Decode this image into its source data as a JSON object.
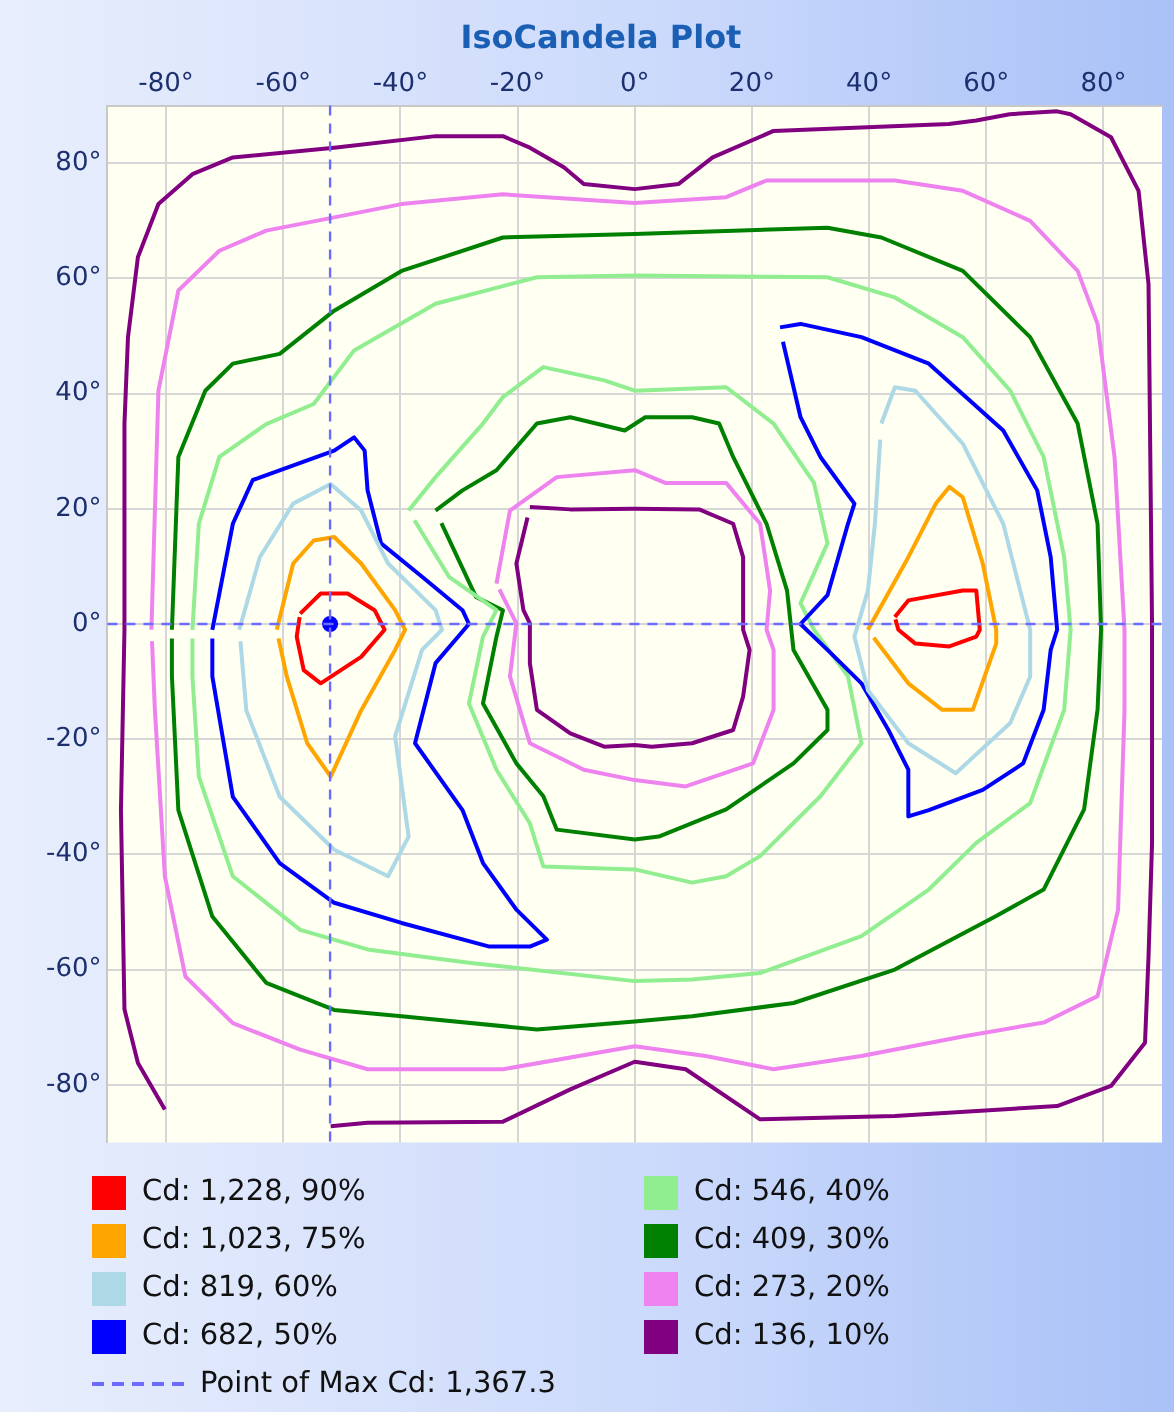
{
  "chart_data": {
    "type": "line",
    "title": "IsoCandela Plot",
    "xlim": [
      -90,
      90
    ],
    "ylim": [
      -90,
      90
    ],
    "xticks": [
      {
        "value": -80,
        "label": "-80°"
      },
      {
        "value": -60,
        "label": "-60°"
      },
      {
        "value": -40,
        "label": "-40°"
      },
      {
        "value": -20,
        "label": "-20°"
      },
      {
        "value": 0,
        "label": "0°"
      },
      {
        "value": 20,
        "label": "20°"
      },
      {
        "value": 40,
        "label": "40°"
      },
      {
        "value": 60,
        "label": "60°"
      },
      {
        "value": 80,
        "label": "80°"
      }
    ],
    "yticks": [
      {
        "value": -80,
        "label": "-80°"
      },
      {
        "value": -60,
        "label": "-60°"
      },
      {
        "value": -40,
        "label": "-40°"
      },
      {
        "value": -20,
        "label": "-20°"
      },
      {
        "value": 0,
        "label": "0°"
      },
      {
        "value": 20,
        "label": "20°"
      },
      {
        "value": 40,
        "label": "40°"
      },
      {
        "value": 60,
        "label": "60°"
      },
      {
        "value": 80,
        "label": "80°"
      }
    ],
    "grid": true,
    "legend": "bottom",
    "marker": "none",
    "line_style": "solid",
    "series": [
      {
        "name": "Cd: 1,228, 90%",
        "color": "#ff0000",
        "x": [
          -57.1,
          -53.6,
          -49,
          -44.4,
          -42.7,
          -46.7,
          -53.6,
          -56.5,
          -57.7,
          -57.2
        ],
        "values": [
          1.8,
          5.3,
          5.3,
          2.4,
          -1,
          -5.7,
          -10.3,
          -8,
          -2.2,
          1.2
        ]
      },
      {
        "color": "#ff0000",
        "x": [
          44.4,
          46.7,
          56,
          58.3,
          58.9,
          58.3,
          53.7,
          47.9,
          45,
          44.5
        ],
        "values": [
          1.2,
          4.1,
          5.8,
          5.8,
          -1,
          -2.2,
          -3.9,
          -3.4,
          -1,
          0.8
        ]
      },
      {
        "name": "Cd: 1,023, 75%",
        "color": "#ffa500",
        "x": [
          -61.1,
          -58.3,
          -54.8,
          -51.3,
          -46.7,
          -40.9,
          -39.2,
          -40.9,
          -46.7,
          -51.9,
          -55.9,
          -59.4,
          -60.8
        ],
        "values": [
          -1,
          10.5,
          14.5,
          15.1,
          10.5,
          2.4,
          -1,
          -4.5,
          -15,
          -26.5,
          -20.7,
          -9.1,
          -2.5
        ]
      },
      {
        "color": "#ffa500",
        "x": [
          39.8,
          46.7,
          51.4,
          53.7,
          56,
          59.4,
          61.7,
          61.7,
          57.7,
          52.5,
          46.7,
          40.8
        ],
        "values": [
          -1,
          11.6,
          20.9,
          23.8,
          22,
          10.5,
          -1,
          -3.4,
          -14.9,
          -14.9,
          -10.3,
          -2.4
        ]
      },
      {
        "name": "Cd: 819, 60%",
        "color": "#add8e6",
        "x": [
          -67.5,
          -64,
          -58.3,
          -51.9,
          -46.7,
          -42.1,
          -34,
          -32.9,
          -36.3,
          -40.9,
          -38.6,
          -42.1,
          -51.3,
          -60.6,
          -66.3,
          -67.3
        ],
        "values": [
          -1,
          11.6,
          20.9,
          24.3,
          19.7,
          10.5,
          2.4,
          -1,
          -4.5,
          -19.5,
          -36.9,
          -43.8,
          -39.2,
          -30,
          -15,
          -3
        ]
      },
      {
        "color": "#add8e6",
        "x": [
          42.1,
          44.4,
          47.9,
          56,
          62.9,
          67.5,
          67.5,
          64.1,
          54.8,
          46.7,
          39.8,
          37.5,
          39.8,
          41,
          41.9
        ],
        "values": [
          34.8,
          41.1,
          40.5,
          31.3,
          17.4,
          -1,
          -9.1,
          -17.2,
          -25.9,
          -20.7,
          -11.5,
          -2.2,
          5.8,
          17.4,
          32
        ]
      },
      {
        "name": "Cd: 682, 50%",
        "color": "#0000ff",
        "x": [
          -72.1,
          -68.6,
          -65.2,
          -51.3,
          -47.9,
          -46.1,
          -45.6,
          -43.3,
          -36.3,
          -29.4,
          -28.3,
          -34,
          -37.5,
          -29.4,
          -25.9,
          -20.2,
          -15,
          -17.9,
          -24.8,
          -39.8,
          -51.3,
          -60.6,
          -68.6,
          -72.1,
          -72.1
        ],
        "values": [
          -1,
          17.4,
          25,
          30.1,
          32.4,
          30.1,
          23.2,
          14,
          8.2,
          2.4,
          0,
          -6.8,
          -20.7,
          -32.3,
          -41.5,
          -49.6,
          -54.8,
          -56,
          -56,
          -51.9,
          -48.4,
          -41.5,
          -30,
          -9.1,
          -2.5
        ]
      },
      {
        "color": "#0000ff",
        "x": [
          24.8,
          28.3,
          38.7,
          50.2,
          62.9,
          68.7,
          71,
          72.1,
          71,
          69.8,
          66.3,
          59.4,
          50.2,
          46.7,
          46.7,
          43.3,
          38.7,
          32.9,
          28.3,
          32.9,
          36.4,
          37.5,
          31.7,
          28.3,
          25.3
        ],
        "values": [
          51.5,
          52.1,
          49.8,
          45.2,
          33.6,
          23.2,
          11.6,
          -1,
          -4.5,
          -14.9,
          -24.2,
          -28.8,
          -32.3,
          -33.4,
          -25.3,
          -18.4,
          -10.3,
          -4.5,
          0,
          5,
          17.4,
          20.9,
          29,
          35.9,
          49
        ]
      },
      {
        "name": "Cd: 546, 40%",
        "color": "#90ee90",
        "x": [
          -75.5,
          -74.4,
          -70.9,
          -62.9,
          -54.8,
          -47.9,
          -34,
          -16.7,
          0,
          32.9,
          44.4,
          56,
          64.1,
          69.8,
          73.3,
          74.4,
          73.3,
          67.5,
          58.3,
          50.2,
          38.7,
          21.4,
          9.8,
          0,
          -28.3,
          -45.6,
          -57.1,
          -68.6,
          -74.4,
          -75.5,
          -75.5
        ],
        "values": [
          -1,
          17.4,
          29,
          34.7,
          38.2,
          47.5,
          55.6,
          60.2,
          60.5,
          60.2,
          56.7,
          49.8,
          40.5,
          29,
          11.6,
          -1,
          -14.9,
          -31.1,
          -38,
          -46.1,
          -54.2,
          -60.6,
          -61.7,
          -62,
          -58.8,
          -56.5,
          -53.1,
          -43.8,
          -26.5,
          -9.1,
          -2.5
        ]
      },
      {
        "color": "#90ee90",
        "x": [
          -38.6,
          -34,
          -25.9,
          -22.5,
          -15.6,
          -5.2,
          0,
          15.6,
          23.7,
          30.6,
          32.9,
          28.3,
          30.6,
          36.4,
          38.7,
          31.7,
          21.4,
          15.6,
          9.8,
          0,
          -15.6,
          -17.9,
          -23.6,
          -28.3,
          -25.9,
          -23.6,
          -31.7,
          -37.6
        ],
        "values": [
          19.7,
          25.5,
          34.8,
          39.4,
          44.6,
          42.3,
          40.5,
          41.1,
          34.8,
          24.5,
          14,
          3.6,
          -1,
          -9.1,
          -20.7,
          -29.9,
          -40.3,
          -43.8,
          -44.9,
          -42.6,
          -42.1,
          -34.6,
          -25.3,
          -13.8,
          -2.2,
          2.4,
          8.2,
          18
        ]
      },
      {
        "name": "Cd: 409, 30%",
        "color": "#008000",
        "x": [
          -79,
          -77.9,
          -73.3,
          -68.6,
          -60.6,
          -51.3,
          -39.8,
          -22.5,
          0,
          32.9,
          42.1,
          56,
          67.5,
          75.6,
          79,
          79.6,
          79,
          76.7,
          69.8,
          61.7,
          44.4,
          27.1,
          9.8,
          0,
          -16.7,
          -39.8,
          -51.3,
          -62.9,
          -72.1,
          -77.9,
          -79,
          -79
        ],
        "values": [
          -1,
          29,
          40.5,
          45.2,
          46.9,
          54.4,
          61.3,
          67.1,
          67.7,
          68.8,
          67.1,
          61.3,
          49.8,
          34.8,
          17.4,
          -1,
          -14.9,
          -32.2,
          -46.1,
          -50.7,
          -60,
          -65.8,
          -68.1,
          -69,
          -70.4,
          -68.1,
          -67,
          -62.3,
          -50.8,
          -32.3,
          -9.1,
          -2.5
        ]
      },
      {
        "color": "#008000",
        "x": [
          -34,
          -29.4,
          -23.6,
          -16.7,
          -11,
          -1.7,
          1.8,
          9.8,
          14.4,
          16.8,
          22.5,
          26,
          27.1,
          32.9,
          32.9,
          27.1,
          15.6,
          4.1,
          0,
          -13.3,
          -15.6,
          -20.2,
          -25.9,
          -23.6,
          -22.5,
          -27.1,
          -33
        ],
        "values": [
          19.7,
          23.2,
          26.7,
          34.8,
          35.9,
          33.6,
          35.9,
          35.9,
          34.8,
          29,
          17.4,
          5.8,
          -4.5,
          -14.9,
          -18.4,
          -24.2,
          -32.2,
          -36.9,
          -37.4,
          -35.7,
          -29.9,
          -24.2,
          -13.8,
          -2.2,
          2.4,
          4.7,
          17.5
        ]
      },
      {
        "name": "Cd: 273, 20%",
        "color": "#ee82ee",
        "x": [
          -82.5,
          -81.3,
          -77.9,
          -70.9,
          -62.9,
          -51.3,
          -39.8,
          -22.5,
          0,
          15.6,
          22.5,
          44.4,
          56,
          67.5,
          75.6,
          79,
          81.9,
          83.6,
          83.6,
          82.5,
          79,
          69.8,
          56,
          38.7,
          23.7,
          12.1,
          0,
          -22.5,
          -45.6,
          -57.1,
          -68.6,
          -76.7,
          -80.2,
          -81.9,
          -82.4
        ],
        "values": [
          -1,
          40.5,
          57.9,
          64.8,
          68.3,
          70.6,
          72.9,
          74.6,
          73.1,
          74.1,
          77,
          77,
          75.2,
          70,
          61.3,
          52.1,
          29,
          -1,
          -14.9,
          -49.6,
          -64.6,
          -69.2,
          -71.6,
          -75,
          -77.3,
          -75,
          -73.3,
          -77.3,
          -77.3,
          -73.9,
          -69.3,
          -61.2,
          -43.8,
          -15,
          -3
        ]
      },
      {
        "color": "#ee82ee",
        "x": [
          -23.6,
          -21.3,
          -13.3,
          0,
          5.2,
          15.6,
          21.4,
          23.1,
          22.5,
          23.7,
          23.7,
          20.2,
          8.7,
          0,
          -8.7,
          -17.9,
          -21.3,
          -20.2,
          -23.1
        ],
        "values": [
          7,
          19.7,
          25.5,
          26.7,
          24.5,
          24.5,
          17.4,
          5.8,
          -1,
          -4.5,
          -14.9,
          -24.2,
          -28.2,
          -27.1,
          -25.3,
          -20.7,
          -9.1,
          0.1,
          6
        ]
      },
      {
        "name": "Cd: 136, 10%",
        "color": "#800080",
        "x": [
          -80.2,
          -84.8,
          -87.1,
          -87.7,
          -87.1,
          -87.1,
          -86.5,
          -84.8,
          -81.3,
          -75.5,
          -68.6,
          -51.3,
          -34,
          -22.5,
          -17.9,
          -12.1,
          -8.7,
          0,
          7.5,
          13.3,
          23.7,
          53.6,
          58.3,
          64,
          72.1,
          74.4,
          81.3,
          86,
          87.7,
          88.3,
          88.3,
          87.7,
          87.1,
          81.3,
          72.1,
          44.4,
          21.4,
          8.7,
          0,
          -11,
          -22.5,
          -45.6,
          -51.9
        ],
        "values": [
          -84.3,
          -76.2,
          -66.9,
          -32.3,
          -1,
          34.8,
          49.8,
          63.7,
          72.9,
          78.1,
          81,
          82.7,
          84.7,
          84.7,
          82.7,
          79.3,
          76.4,
          75.5,
          76.4,
          81,
          85.6,
          86.8,
          87.4,
          88.5,
          89,
          88.5,
          84.5,
          75.2,
          59,
          0,
          -38,
          -57.7,
          -72.7,
          -80.2,
          -83.7,
          -85.4,
          -86,
          -77.3,
          -76,
          -80.8,
          -86.4,
          -86.6,
          -87.2
        ]
      },
      {
        "color": "#800080",
        "x": [
          -17.9,
          -11,
          0,
          11,
          16.8,
          18.5,
          18.5,
          19.6,
          18.5,
          16.8,
          9.8,
          2.9,
          0,
          -5.2,
          -11,
          -16.7,
          -17.9,
          -17.9,
          -19,
          -20.2,
          -18.3
        ],
        "values": [
          20.3,
          19.9,
          20,
          19.9,
          17.4,
          11.6,
          -1,
          -4.5,
          -12.6,
          -18.4,
          -20.7,
          -21.3,
          -21,
          -21.3,
          -19,
          -14.9,
          -6.8,
          0.1,
          2.4,
          10.5,
          18.5
        ]
      },
      {
        "type": "scatter",
        "color": "#0000ff",
        "marker": "circle",
        "x": [
          -52
        ],
        "values": [
          0
        ]
      }
    ],
    "annotations": [
      "Point of Max Cd: 1,367.3"
    ],
    "ref_lines": [
      {
        "axis": "x",
        "value": -52,
        "color": "#6b6bff",
        "line_style": "dashed"
      },
      {
        "axis": "y",
        "value": 0,
        "color": "#6b6bff",
        "line_style": "dashed"
      }
    ]
  }
}
